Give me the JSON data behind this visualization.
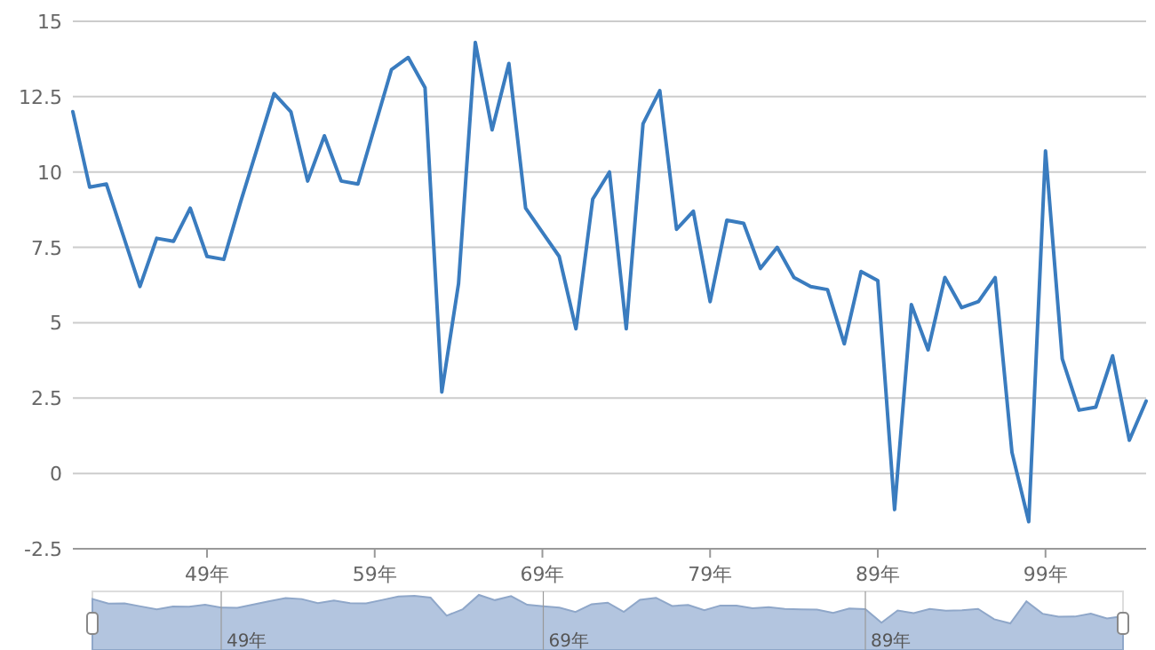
{
  "chart_data": {
    "type": "line",
    "categories": [
      null,
      null,
      null,
      null,
      null,
      null,
      null,
      null,
      "49年",
      null,
      null,
      null,
      null,
      null,
      null,
      null,
      null,
      null,
      "59年",
      null,
      null,
      null,
      null,
      null,
      null,
      null,
      null,
      null,
      "69年",
      null,
      null,
      null,
      null,
      null,
      null,
      null,
      null,
      null,
      "79年",
      null,
      null,
      null,
      null,
      null,
      null,
      null,
      null,
      null,
      "89年",
      null,
      null,
      null,
      null,
      null,
      null,
      null,
      null,
      null,
      "99年",
      null,
      null,
      null,
      null,
      null,
      null
    ],
    "values": [
      12.0,
      9.5,
      9.6,
      7.9,
      6.2,
      7.8,
      7.7,
      8.8,
      7.2,
      7.1,
      9.0,
      10.8,
      12.6,
      12.0,
      9.7,
      11.2,
      9.7,
      9.6,
      11.5,
      13.4,
      13.8,
      12.8,
      2.7,
      6.3,
      14.3,
      11.4,
      13.6,
      8.8,
      8.0,
      7.2,
      4.8,
      9.1,
      10.0,
      4.8,
      11.6,
      12.7,
      8.1,
      8.7,
      5.7,
      8.4,
      8.3,
      6.8,
      7.5,
      6.5,
      6.2,
      6.1,
      4.3,
      6.7,
      6.4,
      -1.2,
      5.6,
      4.1,
      6.5,
      5.5,
      5.7,
      6.5,
      0.7,
      -1.6,
      10.7,
      3.8,
      2.1,
      2.2,
      3.9,
      1.1,
      2.4
    ],
    "color": "#3a7cbf",
    "ylim": [
      -2.5,
      15
    ],
    "yticks": [
      -2.5,
      0,
      2.5,
      5,
      7.5,
      10,
      12.5,
      15
    ],
    "grid": "y"
  }
}
